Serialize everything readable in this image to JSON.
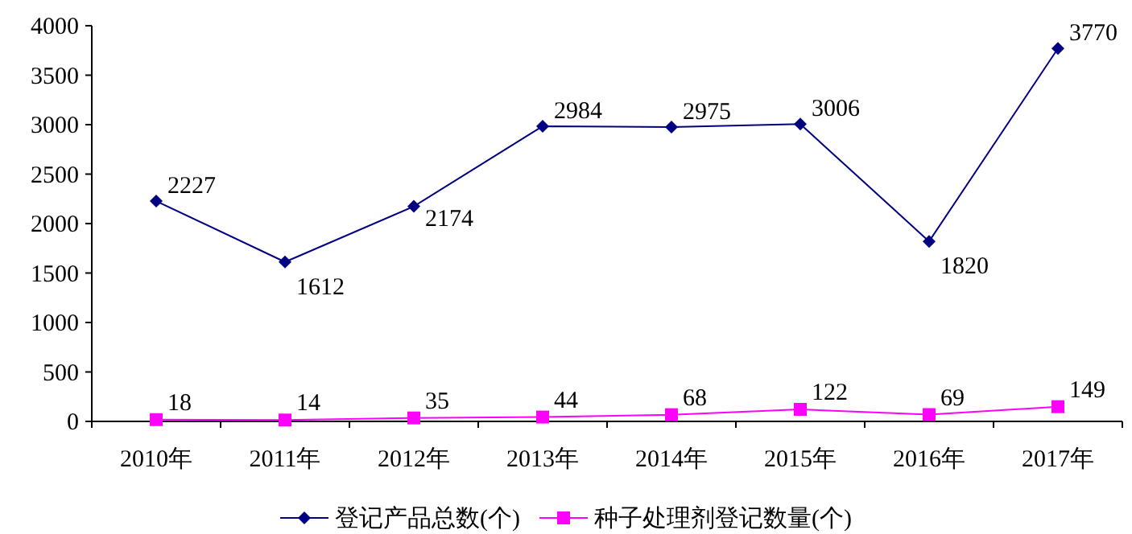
{
  "chart_data": {
    "type": "line",
    "categories": [
      "2010年",
      "2011年",
      "2012年",
      "2013年",
      "2014年",
      "2015年",
      "2016年",
      "2017年"
    ],
    "series": [
      {
        "name": "登记产品总数(个)",
        "color": "#000080",
        "marker": "diamond",
        "values": [
          2227,
          1612,
          2174,
          2984,
          2975,
          3006,
          1820,
          3770
        ]
      },
      {
        "name": "种子处理剂登记数量(个)",
        "color": "#ff00ff",
        "marker": "square",
        "values": [
          18,
          14,
          35,
          44,
          68,
          122,
          69,
          149
        ]
      }
    ],
    "ylim": [
      0,
      4000
    ],
    "yticks": [
      0,
      500,
      1000,
      1500,
      2000,
      2500,
      3000,
      3500,
      4000
    ],
    "data_labels": true,
    "legend": "bottom",
    "grid": false
  }
}
